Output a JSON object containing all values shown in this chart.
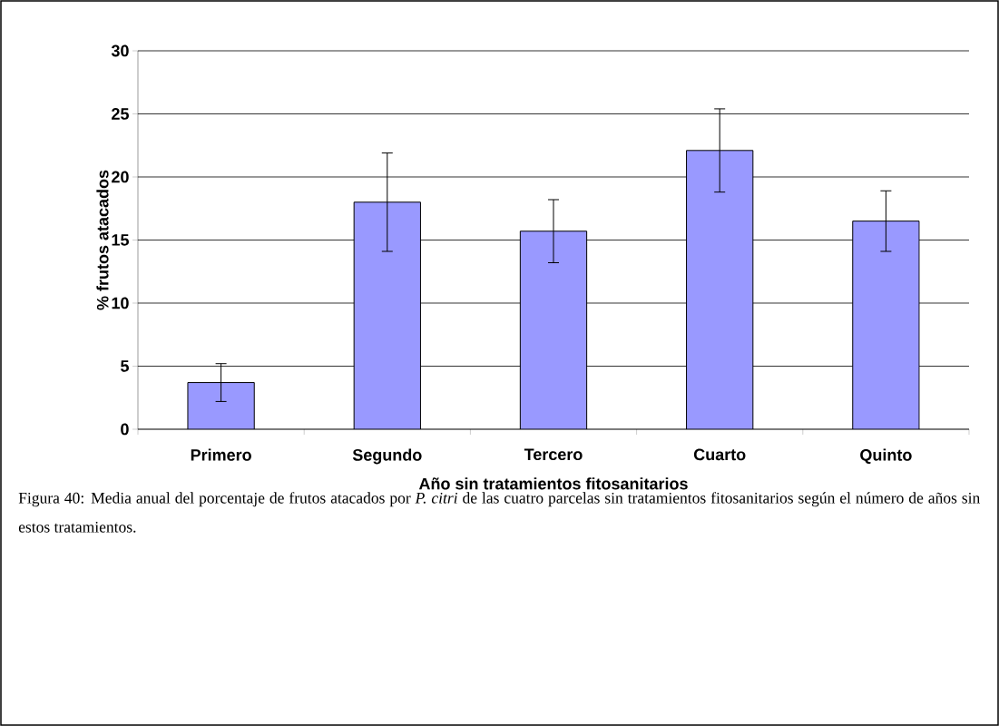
{
  "chart_data": {
    "type": "bar",
    "categories": [
      "Primero",
      "Segundo",
      "Tercero",
      "Cuarto",
      "Quinto"
    ],
    "values": [
      3.7,
      18.0,
      15.7,
      22.1,
      16.5
    ],
    "errors": [
      1.5,
      3.9,
      2.5,
      3.3,
      2.4
    ],
    "color": "#9999ff",
    "xlabel": "Año sin tratamientos fitosanitarios",
    "ylabel": "% frutos atacados",
    "ylim": [
      0,
      30
    ],
    "yticks": [
      0,
      5,
      10,
      15,
      20,
      25,
      30
    ],
    "grid": "y",
    "annotations": [
      "Figura 40: Media anual del porcentaje de frutos atacados por *P. citri* de las cuatro parcelas sin tratamientos fitosanitarios según el número de años sin estos tratamientos."
    ]
  }
}
